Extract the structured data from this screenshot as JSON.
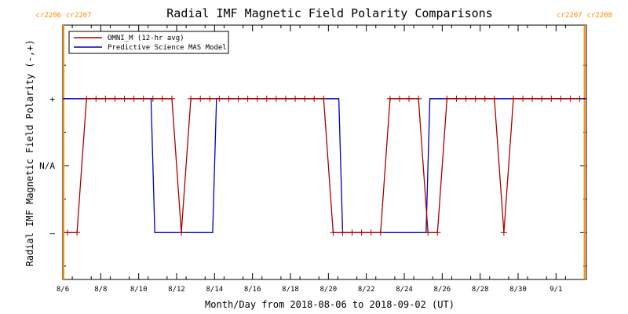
{
  "chart_data": {
    "type": "line",
    "title": "Radial IMF Magnetic Field Polarity Comparisons",
    "xlabel": "Month/Day from 2018-08-06 to 2018-09-02 (UT)",
    "ylabel": "Radial IMF Magnetic Field Polarity (-,+)",
    "xlim": [
      0,
      27.6
    ],
    "ylim": [
      -1.7,
      2.1
    ],
    "x_ticks": [
      {
        "x": 0,
        "label": "8/6"
      },
      {
        "x": 2,
        "label": "8/8"
      },
      {
        "x": 4,
        "label": "8/10"
      },
      {
        "x": 6,
        "label": "8/12"
      },
      {
        "x": 8,
        "label": "8/14"
      },
      {
        "x": 10,
        "label": "8/16"
      },
      {
        "x": 12,
        "label": "8/18"
      },
      {
        "x": 14,
        "label": "8/20"
      },
      {
        "x": 16,
        "label": "8/22"
      },
      {
        "x": 18,
        "label": "8/24"
      },
      {
        "x": 20,
        "label": "8/26"
      },
      {
        "x": 22,
        "label": "8/28"
      },
      {
        "x": 24,
        "label": "8/30"
      },
      {
        "x": 26,
        "label": "9/1"
      }
    ],
    "y_ticks": [
      {
        "y": 1,
        "label": "+"
      },
      {
        "y": 0,
        "label": "N/A"
      },
      {
        "y": -1,
        "label": "–"
      }
    ],
    "carrington_markers": [
      {
        "x": 0,
        "label_left": "cr2206",
        "label_right": "cr2207",
        "side": "left"
      },
      {
        "x": 27.5,
        "label_left": "cr2207",
        "label_right": "cr2208",
        "side": "right"
      }
    ],
    "series": [
      {
        "name": "OMNI_M (12-hr avg)",
        "color": "#aa0000",
        "marker": "plus",
        "x": [
          0.25,
          0.75,
          1.25,
          1.75,
          2.25,
          2.75,
          3.25,
          3.75,
          4.25,
          4.75,
          5.25,
          5.75,
          6.25,
          6.75,
          7.25,
          7.75,
          8.25,
          8.75,
          9.25,
          9.75,
          10.25,
          10.75,
          11.25,
          11.75,
          12.25,
          12.75,
          13.25,
          13.75,
          14.25,
          14.75,
          15.25,
          15.75,
          16.25,
          16.75,
          17.25,
          17.75,
          18.25,
          18.75,
          19.25,
          19.75,
          20.25,
          20.75,
          21.25,
          21.75,
          22.25,
          22.75,
          23.25,
          23.75,
          24.25,
          24.75,
          25.25,
          25.75,
          26.25,
          26.75,
          27.25
        ],
        "y": [
          -1,
          -1,
          1,
          1,
          1,
          1,
          1,
          1,
          1,
          1,
          1,
          1,
          -1,
          1,
          1,
          1,
          1,
          1,
          1,
          1,
          1,
          1,
          1,
          1,
          1,
          1,
          1,
          1,
          -1,
          -1,
          -1,
          -1,
          -1,
          -1,
          1,
          1,
          1,
          1,
          -1,
          -1,
          1,
          1,
          1,
          1,
          1,
          1,
          -1,
          1,
          1,
          1,
          1,
          1,
          1,
          1,
          1
        ]
      },
      {
        "name": "Predictive Science MAS Model",
        "color": "#0000bb",
        "marker": "none",
        "x": [
          0,
          4.65,
          4.85,
          7.9,
          8.1,
          14.55,
          14.75,
          19.15,
          19.35,
          27.6
        ],
        "y": [
          1,
          1,
          -1,
          -1,
          1,
          1,
          -1,
          -1,
          1,
          1
        ]
      }
    ],
    "legend": "top-left",
    "grid": false
  }
}
